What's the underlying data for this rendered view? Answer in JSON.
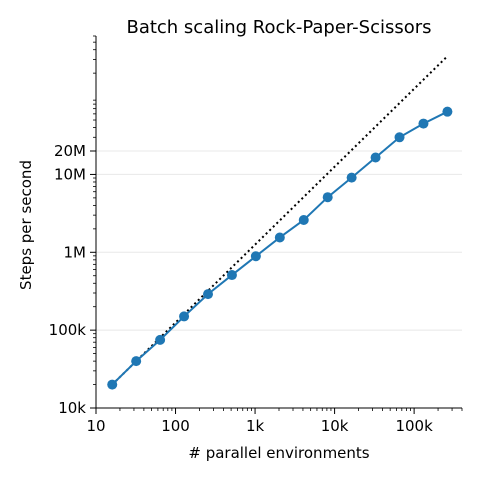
{
  "chart_data": {
    "type": "line",
    "title": "Batch scaling Rock-Paper-Scissors",
    "xlabel": "# parallel environments",
    "ylabel": "Steps per second",
    "x_scale": "log",
    "y_scale": "log",
    "xlim": [
      10,
      400000
    ],
    "ylim": [
      10000,
      600000000
    ],
    "x_ticks": [
      {
        "value": 10,
        "label": "10"
      },
      {
        "value": 100,
        "label": "100"
      },
      {
        "value": 1000,
        "label": "1k"
      },
      {
        "value": 10000,
        "label": "10k"
      },
      {
        "value": 100000,
        "label": "100k"
      }
    ],
    "y_ticks": [
      {
        "value": 10000,
        "label": "10k"
      },
      {
        "value": 100000,
        "label": "100k"
      },
      {
        "value": 1000000,
        "label": "1M"
      },
      {
        "value": 10000000,
        "label": "10M"
      },
      {
        "value": 20000000,
        "label": "20M"
      }
    ],
    "grid": "horizontal",
    "colors": {
      "series": "#1f77b4",
      "reference": "#000000",
      "grid": "#e8e8e8"
    },
    "series": [
      {
        "style": "solid-markers",
        "x": [
          16,
          32,
          64,
          128,
          256,
          512,
          1024,
          2048,
          4096,
          8192,
          16384,
          32768,
          65536,
          131072,
          262144
        ],
        "y": [
          20000,
          40000,
          75000,
          150000,
          290000,
          510000,
          890000,
          1550000,
          2600000,
          5100000,
          9100000,
          16500000,
          30000000,
          45000000,
          64000000
        ]
      },
      {
        "style": "dotted",
        "x": [
          16,
          262144
        ],
        "y": [
          20000,
          330000000
        ]
      }
    ]
  }
}
